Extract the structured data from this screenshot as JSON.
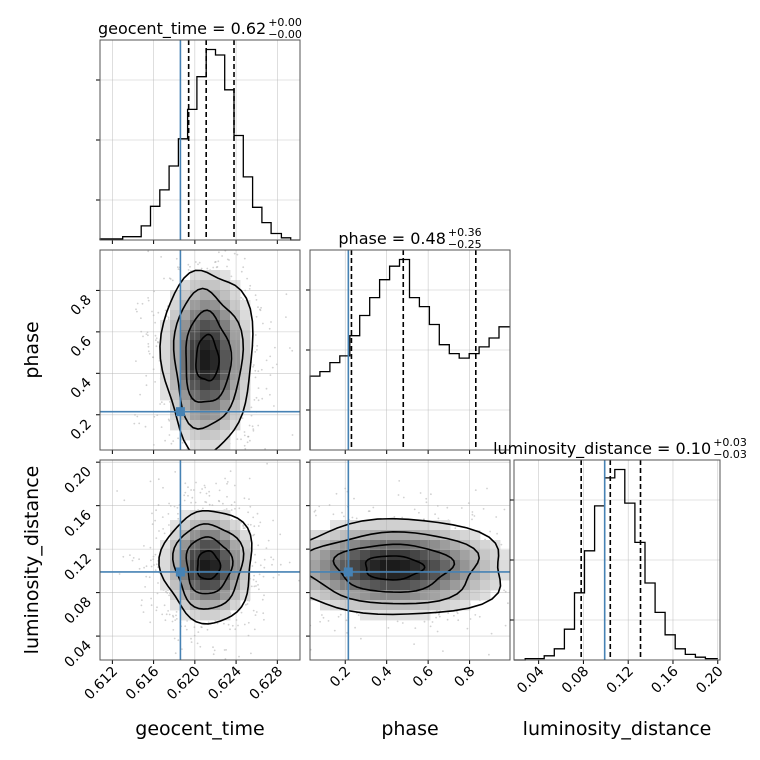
{
  "colors": {
    "truth": "#4682b4",
    "hist": "#000000",
    "grid": "#b0b0b0",
    "scatter": "#9a9a9a"
  },
  "chart_data": {
    "type": "corner",
    "parameters": [
      "geocent_time",
      "phase",
      "luminosity_distance"
    ],
    "truths": {
      "geocent_time": 0.6186,
      "phase": 0.215,
      "luminosity_distance": 0.099
    },
    "titles": [
      {
        "name": "geocent_time",
        "median": "0.62",
        "plus": "+0.00",
        "minus": "−0.00"
      },
      {
        "name": "phase",
        "median": "0.48",
        "plus": "+0.36",
        "minus": "−0.25"
      },
      {
        "name": "luminosity_distance",
        "median": "0.10",
        "plus": "+0.03",
        "minus": "−0.03"
      }
    ],
    "axis_ranges": {
      "geocent_time": [
        0.6108,
        0.6302
      ],
      "phase": [
        0.03,
        0.995
      ],
      "luminosity_distance": [
        0.018,
        0.202
      ]
    },
    "ticks": {
      "geocent_time": [
        "0.612",
        "0.616",
        "0.620",
        "0.624",
        "0.628"
      ],
      "phase": [
        "0.2",
        "0.4",
        "0.6",
        "0.8"
      ],
      "luminosity_distance": [
        "0.04",
        "0.08",
        "0.12",
        "0.16",
        "0.20"
      ]
    },
    "histograms": {
      "geocent_time": {
        "quantiles": [
          0.6194,
          0.6211,
          0.6238
        ],
        "bins": [
          0.6108,
          0.613,
          0.6148,
          0.6157,
          0.6166,
          0.6175,
          0.6184,
          0.6193,
          0.6202,
          0.6211,
          0.622,
          0.6229,
          0.6238,
          0.6247,
          0.6256,
          0.6265,
          0.6274,
          0.6284,
          0.6293,
          0.6302
        ],
        "counts": [
          1,
          3,
          13,
          31,
          46,
          68,
          93,
          120,
          150,
          175,
          170,
          138,
          96,
          58,
          30,
          16,
          6,
          2,
          0
        ]
      },
      "phase": {
        "quantiles": [
          0.23,
          0.48,
          0.83
        ],
        "bins": [
          0.03,
          0.078,
          0.126,
          0.174,
          0.222,
          0.27,
          0.318,
          0.366,
          0.414,
          0.462,
          0.51,
          0.558,
          0.606,
          0.654,
          0.702,
          0.75,
          0.798,
          0.846,
          0.894,
          0.942,
          0.995
        ],
        "counts": [
          33,
          35,
          39,
          42,
          51,
          60,
          68,
          76,
          82,
          85,
          68,
          64,
          56,
          47,
          43,
          41,
          43,
          46,
          50,
          55
        ]
      },
      "luminosity_distance": {
        "quantiles": [
          0.078,
          0.104,
          0.131
        ],
        "bins": [
          0.018,
          0.028,
          0.036,
          0.045,
          0.054,
          0.063,
          0.072,
          0.081,
          0.09,
          0.099,
          0.108,
          0.117,
          0.126,
          0.135,
          0.144,
          0.153,
          0.162,
          0.171,
          0.18,
          0.189,
          0.2
        ],
        "counts": [
          0,
          1,
          1,
          3,
          8,
          22,
          48,
          78,
          110,
          130,
          136,
          112,
          84,
          55,
          34,
          18,
          8,
          4,
          2,
          1
        ]
      }
    },
    "pairs": [
      {
        "x": "geocent_time",
        "y": "phase",
        "center": [
          0.6212,
          0.47
        ],
        "spread": [
          0.0022,
          0.22
        ]
      },
      {
        "x": "geocent_time",
        "y": "luminosity_distance",
        "center": [
          0.6213,
          0.105
        ],
        "spread": [
          0.0022,
          0.026
        ]
      },
      {
        "x": "phase",
        "y": "luminosity_distance",
        "center": [
          0.43,
          0.103
        ],
        "spread": [
          0.28,
          0.022
        ]
      }
    ],
    "axis_labels": {
      "geocent_time": "geocent_time",
      "phase": "phase",
      "luminosity_distance": "luminosity_distance"
    }
  }
}
